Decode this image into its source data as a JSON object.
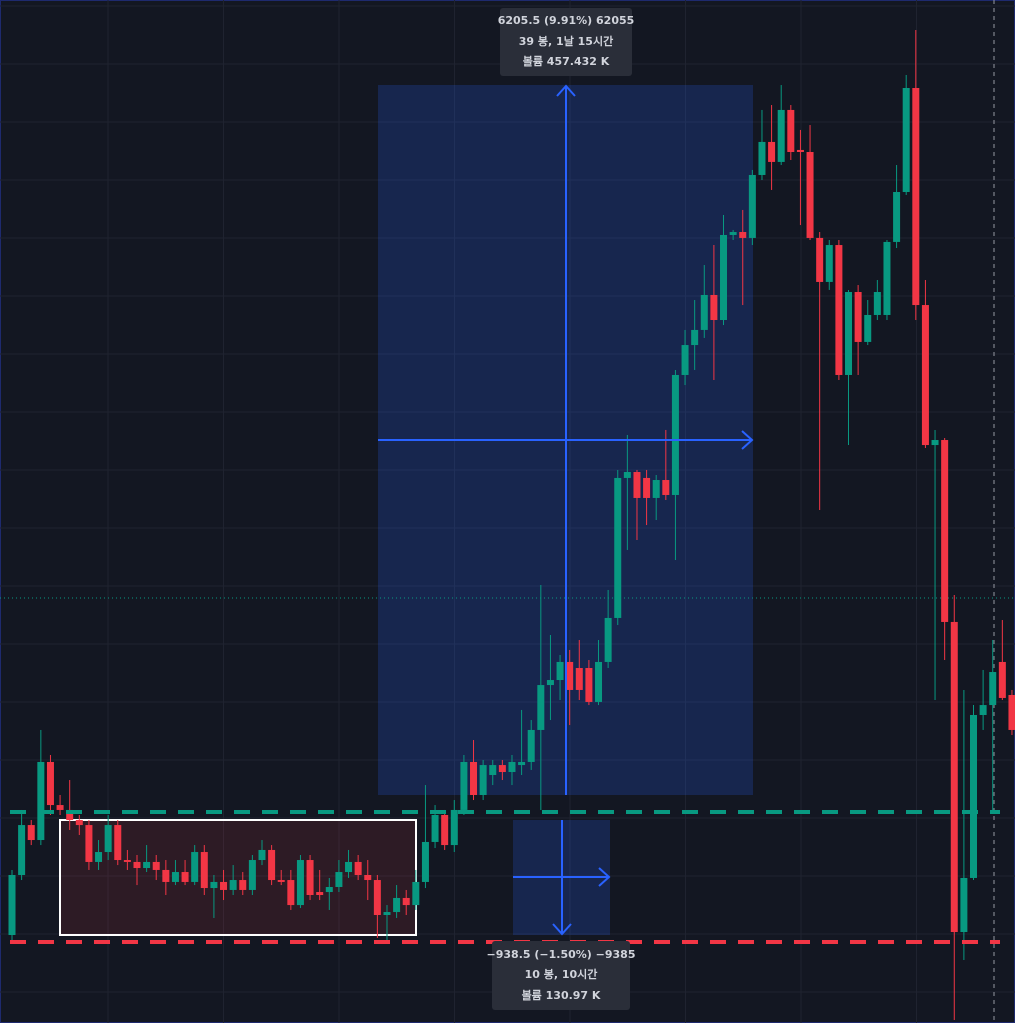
{
  "chart_data": {
    "type": "candlestick",
    "open": [
      61389,
      61914,
      62351,
      62220,
      62903,
      62526,
      62483,
      62395,
      62351,
      62028,
      62115,
      62351,
      62045,
      62028,
      61975,
      62028,
      61958,
      61853,
      61940,
      61853,
      62115,
      61800,
      61853,
      61783,
      61870,
      61783,
      62045,
      62133,
      61870,
      61870,
      61651,
      62045,
      61765,
      61765,
      61809,
      61940,
      62028,
      61914,
      61870,
      61564,
      61590,
      61713,
      61651,
      61853,
      62203,
      62439,
      62176,
      62483,
      62903,
      62614,
      62789,
      62876,
      62815,
      62876,
      62903,
      63183,
      63576,
      63620,
      63778,
      63725,
      63725,
      63428,
      63778,
      64163,
      65388,
      65440,
      65388,
      65213,
      65370,
      65239,
      66289,
      66551,
      66683,
      66989,
      66770,
      67514,
      67540,
      67488,
      68039,
      68328,
      68153,
      68608,
      68258,
      68240,
      67488,
      67103,
      67426,
      66289,
      67015,
      66578,
      66814,
      66814,
      67453,
      67890,
      68800,
      66901,
      65676,
      65720,
      64128,
      61415,
      61888,
      63314,
      63401,
      63778,
      63489
    ],
    "high": [
      61958,
      62483,
      62395,
      63183,
      62964,
      62614,
      62745,
      62439,
      62395,
      62220,
      62439,
      62395,
      62133,
      62089,
      62176,
      62089,
      62045,
      62045,
      62045,
      62176,
      62176,
      61914,
      61958,
      62001,
      61940,
      62089,
      62220,
      62176,
      61958,
      61958,
      62089,
      62089,
      61958,
      61888,
      62045,
      62133,
      62089,
      62045,
      61914,
      61651,
      61826,
      61783,
      61958,
      62701,
      62526,
      62483,
      62570,
      62964,
      63095,
      62920,
      62920,
      62920,
      62964,
      63358,
      63270,
      64451,
      64014,
      63839,
      63883,
      63970,
      63795,
      63970,
      64408,
      65458,
      65764,
      65458,
      65458,
      65414,
      65808,
      66333,
      66683,
      66945,
      67251,
      67426,
      67689,
      67558,
      67733,
      68083,
      68608,
      68651,
      68826,
      68651,
      68433,
      68476,
      67540,
      67470,
      67470,
      67033,
      67076,
      66945,
      67120,
      67470,
      68126,
      68914,
      69308,
      67120,
      65808,
      65738,
      64364,
      63533,
      63401,
      63708,
      63970,
      64145,
      63533
    ],
    "low": [
      61345,
      61870,
      62176,
      62176,
      62439,
      62439,
      62308,
      62264,
      61958,
      61958,
      62045,
      62001,
      61958,
      61826,
      61940,
      61870,
      61739,
      61826,
      61826,
      61826,
      61739,
      61538,
      61695,
      61739,
      61739,
      61739,
      62001,
      61826,
      61826,
      61608,
      61625,
      61695,
      61695,
      61608,
      61765,
      61888,
      61870,
      61695,
      61363,
      61345,
      61538,
      61564,
      61608,
      61800,
      62150,
      62133,
      62115,
      62439,
      62570,
      62570,
      62701,
      62745,
      62701,
      62789,
      62833,
      62483,
      63270,
      63445,
      63226,
      63445,
      63401,
      63401,
      63725,
      64101,
      64758,
      64845,
      64976,
      65020,
      65195,
      64670,
      66201,
      66333,
      66613,
      66245,
      66726,
      67470,
      66901,
      67426,
      67995,
      67908,
      68126,
      68170,
      67601,
      67470,
      65108,
      67033,
      66245,
      65676,
      66289,
      66551,
      66770,
      66770,
      67400,
      67864,
      66770,
      65650,
      63445,
      63795,
      60645,
      61170,
      61870,
      63183,
      62483,
      63445,
      63139
    ],
    "close": [
      61914,
      62351,
      62220,
      62903,
      62526,
      62483,
      62395,
      62351,
      62028,
      62115,
      62351,
      62045,
      62028,
      61975,
      62028,
      61958,
      61853,
      61940,
      61853,
      62115,
      61800,
      61853,
      61783,
      61870,
      61783,
      62045,
      62133,
      61870,
      61853,
      61651,
      62045,
      61739,
      61739,
      61809,
      61940,
      62028,
      61914,
      61870,
      61564,
      61590,
      61713,
      61651,
      61853,
      62203,
      62439,
      62176,
      62483,
      62903,
      62614,
      62876,
      62876,
      62815,
      62903,
      62903,
      63183,
      63576,
      63620,
      63778,
      63533,
      63533,
      63428,
      63778,
      64163,
      65388,
      65440,
      65213,
      65213,
      65370,
      65239,
      66289,
      66551,
      66683,
      66989,
      66770,
      67514,
      67540,
      67488,
      68039,
      68328,
      68153,
      68608,
      68240,
      68240,
      67488,
      67103,
      67426,
      66289,
      67015,
      66578,
      66814,
      67015,
      67453,
      67890,
      68800,
      66901,
      65676,
      65720,
      64128,
      61415,
      61888,
      63314,
      63401,
      63690,
      63463,
      63183
    ],
    "up_color": "#089981",
    "down_color": "#f23645",
    "ylim": [
      60619,
      69570
    ],
    "annotations": [
      {
        "lines": [
          "6205.5 (9.91%) 62055",
          "39 봉, 1날 15시간",
          "볼륨 457.432 K"
        ]
      },
      {
        "lines": [
          "−938.5 (−1.50%) −9385",
          "10 봉, 10시간",
          "볼륨 130.97 K"
        ]
      }
    ]
  }
}
